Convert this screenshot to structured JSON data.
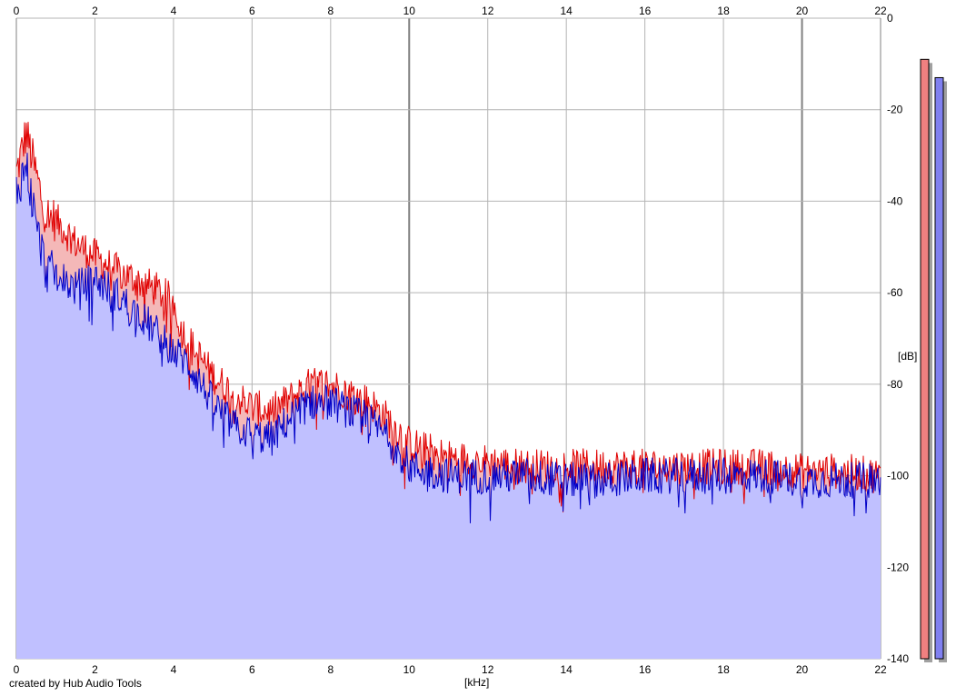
{
  "credit": "created by Hub Audio Tools",
  "chart_data": {
    "type": "area",
    "xlabel": "[kHz]",
    "ylabel": "[dB]",
    "xlim": [
      0,
      22
    ],
    "ylim": [
      -140,
      0
    ],
    "x_ticks": [
      0,
      2,
      4,
      6,
      8,
      10,
      12,
      14,
      16,
      18,
      20,
      22
    ],
    "y_ticks": [
      0,
      -20,
      -40,
      -60,
      -80,
      -100,
      -120,
      -140
    ],
    "grid": true,
    "colors": {
      "left_line": "#e00000",
      "left_fill": "#f4b8b8",
      "right_line": "#0000c8",
      "right_fill": "#c0c0ff",
      "grid": "#b4b4b4",
      "grid_major": "#808080"
    },
    "series": [
      {
        "x": [
          0,
          0.25,
          0.5,
          0.75,
          1,
          1.5,
          2,
          2.5,
          3,
          3.5,
          4,
          4.2,
          4.5,
          5,
          5.5,
          6,
          6.5,
          7,
          7.5,
          8,
          8.5,
          9,
          9.5,
          10,
          11,
          12,
          13,
          14,
          15,
          16,
          17,
          18,
          19,
          20,
          21,
          22
        ],
        "y": [
          -34,
          -25,
          -34,
          -43,
          -44,
          -49,
          -52,
          -55,
          -57,
          -59,
          -62,
          -68,
          -72,
          -78,
          -82,
          -85,
          -86,
          -83,
          -80,
          -80,
          -82,
          -84,
          -88,
          -93,
          -96,
          -97,
          -98,
          -98,
          -98,
          -98,
          -98,
          -98,
          -98,
          -99,
          -99,
          -100
        ]
      },
      {
        "x": [
          0,
          0.25,
          0.5,
          0.75,
          1,
          1.5,
          2,
          2.5,
          3,
          3.5,
          4,
          4.2,
          4.5,
          5,
          5.5,
          6,
          6.5,
          7,
          7.5,
          8,
          8.5,
          9,
          9.5,
          10,
          11,
          12,
          13,
          14,
          15,
          16,
          17,
          18,
          19,
          20,
          21,
          22
        ],
        "y": [
          -38,
          -32,
          -45,
          -55,
          -56,
          -59,
          -57,
          -60,
          -64,
          -68,
          -73,
          -74,
          -77,
          -84,
          -89,
          -91,
          -92,
          -87,
          -84,
          -84,
          -86,
          -88,
          -92,
          -98,
          -100,
          -100,
          -100,
          -101,
          -101,
          -100,
          -100,
          -100,
          -100,
          -101,
          -101,
          -101
        ]
      }
    ],
    "level_meters": [
      {
        "value_db": -9
      },
      {
        "value_db": -13
      }
    ]
  }
}
